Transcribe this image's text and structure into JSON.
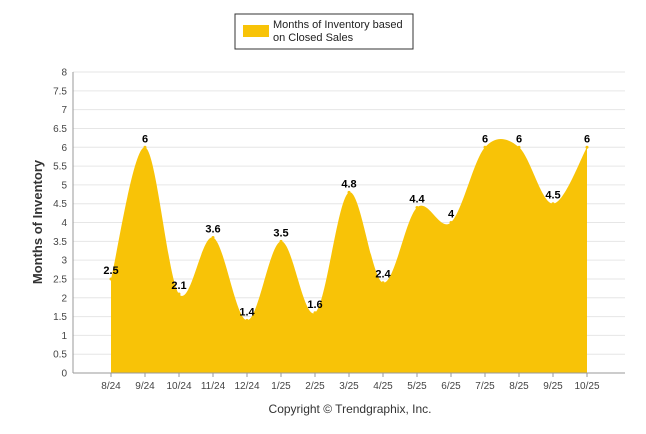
{
  "chart_data": {
    "type": "area",
    "title": "",
    "xlabel": "",
    "ylabel": "Months of Inventory",
    "legend": {
      "placement": "top-center",
      "entries": [
        "Months of Inventory based on Closed Sales"
      ],
      "lines": [
        "Months of Inventory based",
        "on Closed Sales"
      ]
    },
    "categories": [
      "8/24",
      "9/24",
      "10/24",
      "11/24",
      "12/24",
      "1/25",
      "2/25",
      "3/25",
      "4/25",
      "5/25",
      "6/25",
      "7/25",
      "8/25",
      "9/25",
      "10/25"
    ],
    "series": [
      {
        "name": "Months of Inventory based on Closed Sales",
        "values": [
          2.5,
          6,
          2.1,
          3.6,
          1.4,
          3.5,
          1.6,
          4.8,
          2.4,
          4.4,
          4,
          6,
          6,
          4.5,
          6
        ],
        "labels": [
          "2.5",
          "6",
          "2.1",
          "3.6",
          "1.4",
          "3.5",
          "1.6",
          "4.8",
          "2.4",
          "4.4",
          "4",
          "6",
          "6",
          "4.5",
          "6"
        ]
      }
    ],
    "ylim": [
      0,
      8
    ],
    "yticks": [
      "0",
      "0.5",
      "1",
      "1.5",
      "2",
      "2.5",
      "3",
      "3.5",
      "4",
      "4.5",
      "5",
      "5.5",
      "6",
      "6.5",
      "7",
      "7.5",
      "8"
    ],
    "grid": true
  },
  "colors": {
    "area": "#F8C307",
    "grid": "#e6e6e6",
    "axis": "#999999"
  },
  "footer": {
    "copyright": "Copyright © Trendgraphix, Inc."
  }
}
